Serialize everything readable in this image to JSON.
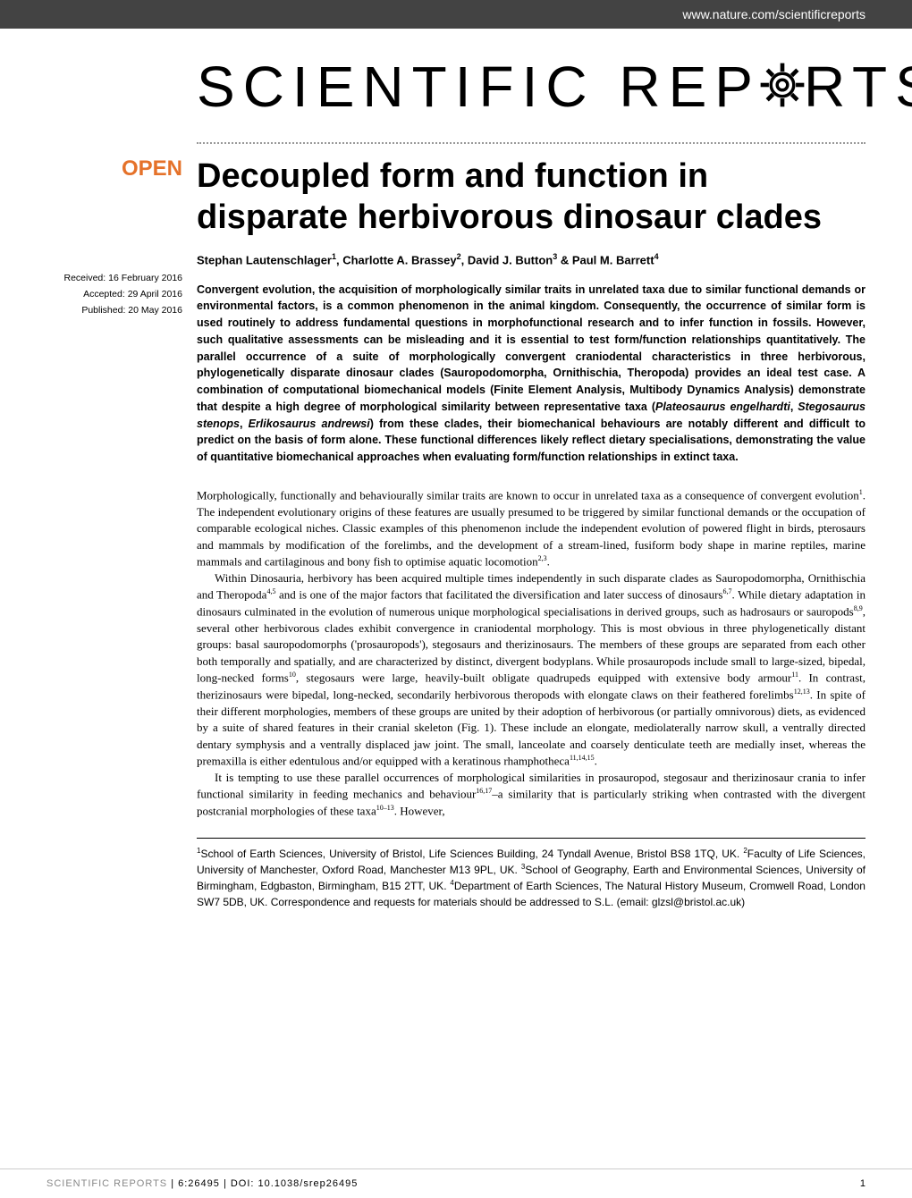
{
  "header": {
    "url": "www.nature.com/scientificreports"
  },
  "logo": {
    "text_before": "SCIENTIFIC",
    "text_rep": "REP",
    "text_rts": "RTS"
  },
  "badge": {
    "open": "OPEN"
  },
  "dates": {
    "received": "Received: 16 February 2016",
    "accepted": "Accepted: 29 April 2016",
    "published": "Published: 20 May 2016"
  },
  "article": {
    "title": "Decoupled form and function in disparate herbivorous dinosaur clades",
    "authors_html": "Stephan Lautenschlager<sup>1</sup>, Charlotte A. Brassey<sup>2</sup>, David J. Button<sup>3</sup> & Paul M. Barrett<sup>4</sup>"
  },
  "abstract": {
    "text_html": "Convergent evolution, the acquisition of morphologically similar traits in unrelated taxa due to similar functional demands or environmental factors, is a common phenomenon in the animal kingdom. Consequently, the occurrence of similar form is used routinely to address fundamental questions in morphofunctional research and to infer function in fossils. However, such qualitative assessments can be misleading and it is essential to test form/function relationships quantitatively. The parallel occurrence of a suite of morphologically convergent craniodental characteristics in three herbivorous, phylogenetically disparate dinosaur clades (Sauropodomorpha, Ornithischia, Theropoda) provides an ideal test case. A combination of computational biomechanical models (Finite Element Analysis, Multibody Dynamics Analysis) demonstrate that despite a high degree of morphological similarity between representative taxa (<span class=\"italic\">Plateosaurus engelhardti</span>, <span class=\"italic\">Stegosaurus stenops</span>, <span class=\"italic\">Erlikosaurus andrewsi</span>) from these clades, their biomechanical behaviours are notably different and difficult to predict on the basis of form alone. These functional differences likely reflect dietary specialisations, demonstrating the value of quantitative biomechanical approaches when evaluating form/function relationships in extinct taxa."
  },
  "body": {
    "para1_html": "Morphologically, functionally and behaviourally similar traits are known to occur in unrelated taxa as a consequence of convergent evolution<sup>1</sup>. The independent evolutionary origins of these features are usually presumed to be triggered by similar functional demands or the occupation of comparable ecological niches. Classic examples of this phenomenon include the independent evolution of powered flight in birds, pterosaurs and mammals by modification of the forelimbs, and the development of a stream-lined, fusiform body shape in marine reptiles, marine mammals and cartilaginous and bony fish to optimise aquatic locomotion<sup>2,3</sup>.",
    "para2_html": "Within Dinosauria, herbivory has been acquired multiple times independently in such disparate clades as Sauropodomorpha, Ornithischia and Theropoda<sup>4,5</sup> and is one of the major factors that facilitated the diversification and later success of dinosaurs<sup>6,7</sup>. While dietary adaptation in dinosaurs culminated in the evolution of numerous unique morphological specialisations in derived groups, such as hadrosaurs or sauropods<sup>8,9</sup>, several other herbivorous clades exhibit convergence in craniodental morphology. This is most obvious in three phylogenetically distant groups: basal sauropodomorphs ('prosauropods'), stegosaurs and therizinosaurs. The members of these groups are separated from each other both temporally and spatially, and are characterized by distinct, divergent bodyplans. While prosauropods include small to large-sized, bipedal, long-necked forms<sup>10</sup>, stegosaurs were large, heavily-built obligate quadrupeds equipped with extensive body armour<sup>11</sup>. In contrast, therizinosaurs were bipedal, long-necked, secondarily herbivorous theropods with elongate claws on their feathered forelimbs<sup>12,13</sup>. In spite of their different morphologies, members of these groups are united by their adoption of herbivorous (or partially omnivorous) diets, as evidenced by a suite of shared features in their cranial skeleton (Fig. 1). These include an elongate, mediolaterally narrow skull, a ventrally directed dentary symphysis and a ventrally displaced jaw joint. The small, lanceolate and coarsely denticulate teeth are medially inset, whereas the premaxilla is either edentulous and/or equipped with a keratinous rhamphotheca<sup>11,14,15</sup>.",
    "para3_html": "It is tempting to use these parallel occurrences of morphological similarities in prosauropod, stegosaur and therizinosaur crania to infer functional similarity in feeding mechanics and behaviour<sup>16,17</sup>–a similarity that is particularly striking when contrasted with the divergent postcranial morphologies of these taxa<sup>10–13</sup>. However,"
  },
  "affiliations": {
    "text_html": "<sup>1</sup>School of Earth Sciences, University of Bristol, Life Sciences Building, 24 Tyndall Avenue, Bristol BS8 1TQ, UK. <sup>2</sup>Faculty of Life Sciences, University of Manchester, Oxford Road, Manchester M13 9PL, UK. <sup>3</sup>School of Geography, Earth and Environmental Sciences, University of Birmingham, Edgbaston, Birmingham, B15 2TT, UK. <sup>4</sup>Department of Earth Sciences, The Natural History Museum, Cromwell Road, London SW7 5DB, UK. Correspondence and requests for materials should be addressed to S.L. (email: glzsl@bristol.ac.uk)"
  },
  "footer": {
    "journal": "SCIENTIFIC REPORTS",
    "citation": " | 6:26495 | DOI: 10.1038/srep26495",
    "page_number": "1"
  },
  "colors": {
    "header_bg": "#434343",
    "accent": "#e5722a",
    "text": "#000000",
    "muted": "#888888"
  }
}
